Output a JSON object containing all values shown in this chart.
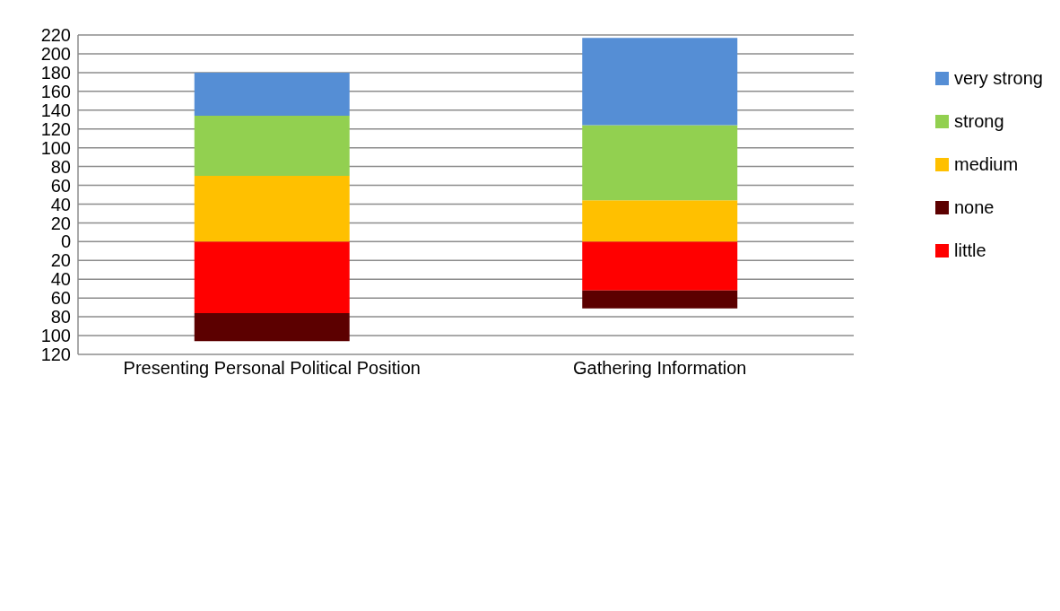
{
  "chart_data": {
    "type": "bar",
    "stacked": true,
    "categories": [
      "Presenting Personal Political Position",
      "Gathering Information"
    ],
    "series": [
      {
        "name": "little",
        "color": "#ff0000",
        "values": [
          -76,
          -52
        ]
      },
      {
        "name": "none",
        "color": "#5c0000",
        "values": [
          -30,
          -19
        ]
      },
      {
        "name": "medium",
        "color": "#ffc000",
        "values": [
          70,
          44
        ]
      },
      {
        "name": "strong",
        "color": "#92d050",
        "values": [
          64,
          80
        ]
      },
      {
        "name": "very strong",
        "color": "#558ed5",
        "values": [
          46,
          93
        ]
      }
    ],
    "ylim": [
      -120,
      220
    ],
    "yticks": [
      {
        "value": -120,
        "label": "120"
      },
      {
        "value": -100,
        "label": "100"
      },
      {
        "value": -80,
        "label": "80"
      },
      {
        "value": -60,
        "label": "60"
      },
      {
        "value": -40,
        "label": "40"
      },
      {
        "value": -20,
        "label": "20"
      },
      0,
      20,
      40,
      60,
      80,
      100,
      120,
      140,
      160,
      180,
      200,
      220
    ],
    "grid": "y",
    "legend": "right"
  }
}
